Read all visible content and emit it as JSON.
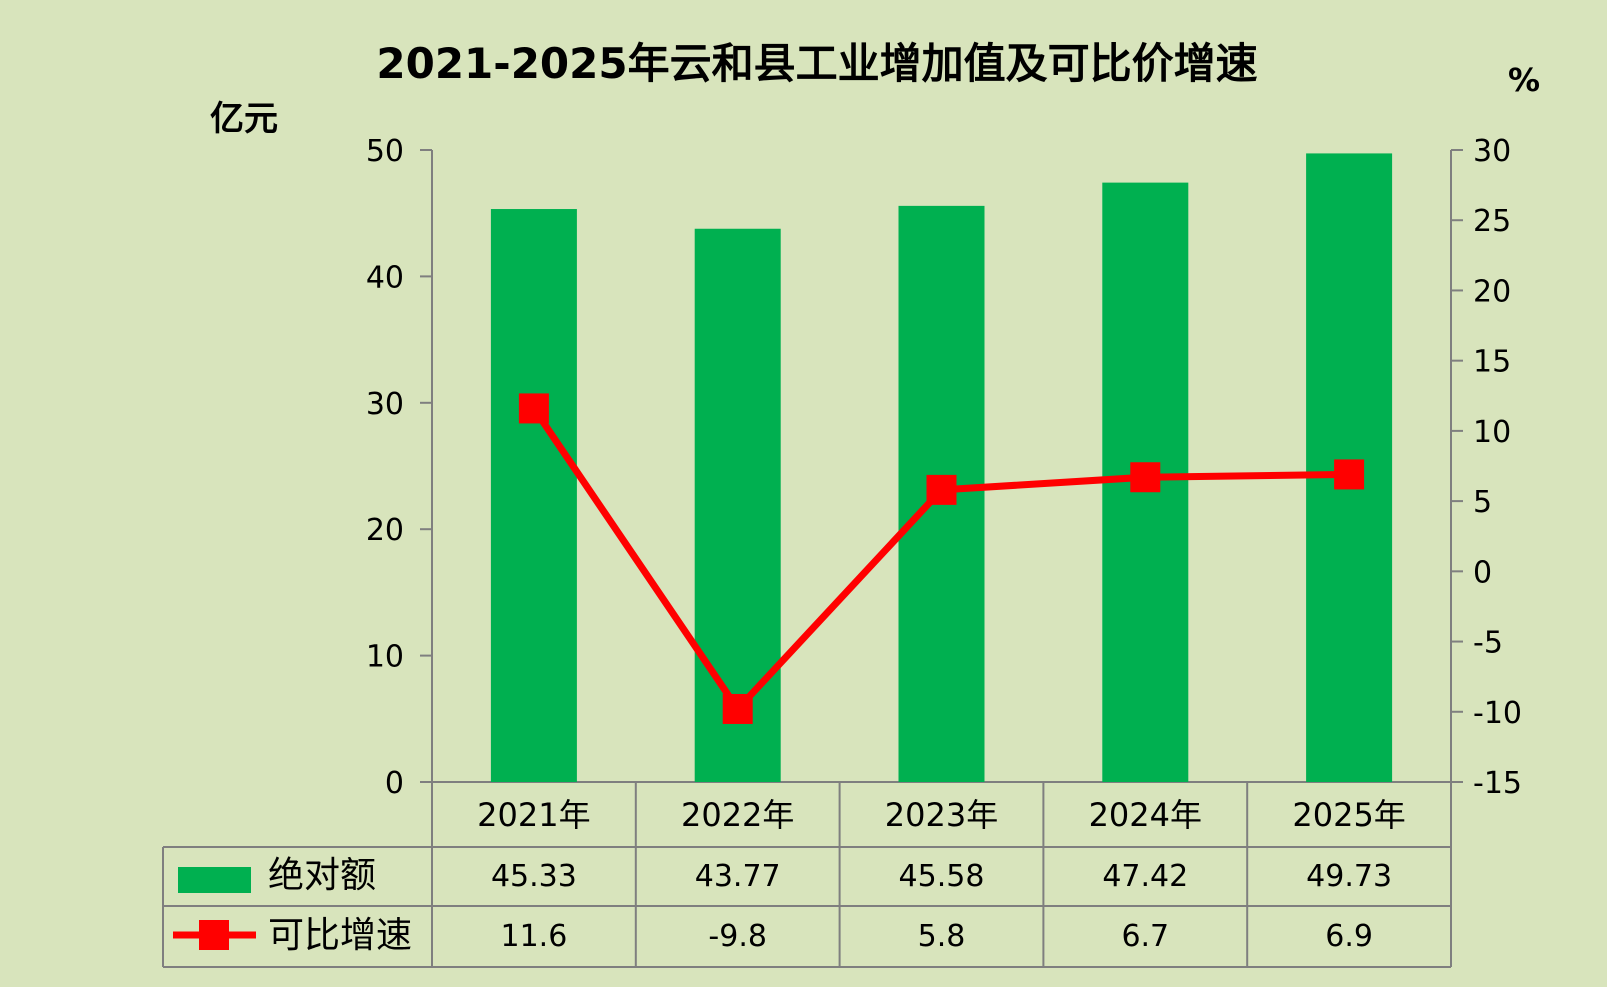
{
  "chart_data": {
    "type": "bar+line",
    "title": "2021-2025年云和县工业增加值及可比价增速",
    "categories": [
      "2021年",
      "2022年",
      "2023年",
      "2024年",
      "2025年"
    ],
    "y_left": {
      "unit": "亿元",
      "range": [
        0,
        50
      ],
      "ticks": [
        "0",
        "10",
        "20",
        "30",
        "40",
        "50"
      ]
    },
    "y_right": {
      "unit": "%",
      "range": [
        -15,
        30
      ],
      "ticks": [
        "-15",
        "-10",
        "-5",
        "0",
        "5",
        "10",
        "15",
        "20",
        "25",
        "30"
      ]
    },
    "series": [
      {
        "name": "绝对额",
        "type": "bar",
        "axis": "left",
        "color": "#00b050",
        "values": [
          45.33,
          43.77,
          45.58,
          47.42,
          49.73
        ],
        "labels": [
          "45.33",
          "43.77",
          "45.58",
          "47.42",
          "49.73"
        ]
      },
      {
        "name": "可比增速",
        "type": "line",
        "axis": "right",
        "color": "#ff0000",
        "marker": "square",
        "values": [
          11.6,
          -9.8,
          5.8,
          6.7,
          6.9
        ],
        "labels": [
          "11.6",
          "-9.8",
          "5.8",
          "6.7",
          "6.9"
        ]
      }
    ],
    "grid": false,
    "legend": "data-table"
  },
  "colors": {
    "background": "#d8e4bc",
    "bar": "#00b050",
    "line": "#ff0000",
    "axis": "#7f7f7f"
  }
}
